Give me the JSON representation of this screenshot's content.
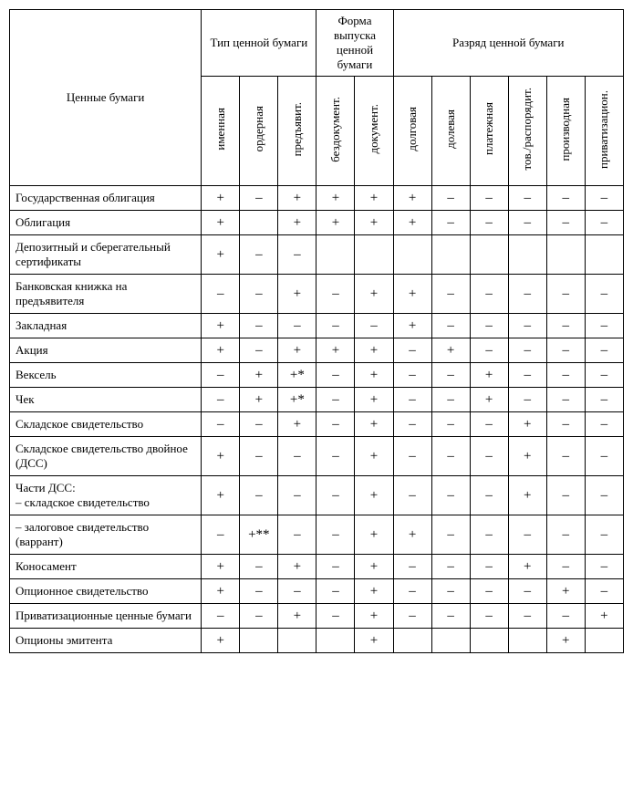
{
  "table": {
    "type": "table",
    "background_color": "#ffffff",
    "border_color": "#000000",
    "font_family": "Times New Roman",
    "body_fontsize": 13,
    "mark_fontsize": 15,
    "header": {
      "row_header": "Ценные бумаги",
      "groups": [
        {
          "label": "Тип ценной бумаги",
          "span": 3
        },
        {
          "label": "Форма выпуска ценной бумаги",
          "span": 2
        },
        {
          "label": "Разряд ценной бумаги",
          "span": 6
        }
      ],
      "subcolumns": [
        "именная",
        "ордерная",
        "предъявит.",
        "бездокумент.",
        "документ.",
        "долговая",
        "долевая",
        "платежная",
        "тов./распорядит.",
        "производная",
        "приватизацион."
      ]
    },
    "rows": [
      {
        "label": "Государственная облигация",
        "cells": [
          "+",
          "–",
          "+",
          "+",
          "+",
          "+",
          "–",
          "–",
          "–",
          "–",
          "–"
        ]
      },
      {
        "label": "Облигация",
        "cells": [
          "+",
          "",
          "+",
          "+",
          "+",
          "+",
          "–",
          "–",
          "–",
          "–",
          "–"
        ]
      },
      {
        "label": "Депозитный и сберегательный сертификаты",
        "cells": [
          "+",
          "–",
          "–",
          "",
          "",
          "",
          "",
          "",
          "",
          "",
          ""
        ]
      },
      {
        "label": "Банковская книжка на предъявителя",
        "cells": [
          "–",
          "–",
          "+",
          "–",
          "+",
          "+",
          "–",
          "–",
          "–",
          "–",
          "–"
        ]
      },
      {
        "label": "Закладная",
        "cells": [
          "+",
          "–",
          "–",
          "–",
          "–",
          "+",
          "–",
          "–",
          "–",
          "–",
          "–"
        ]
      },
      {
        "label": "Акция",
        "cells": [
          "+",
          "–",
          "+",
          "+",
          "+",
          "–",
          "+",
          "–",
          "–",
          "–",
          "–"
        ]
      },
      {
        "label": "Вексель",
        "cells": [
          "–",
          "+",
          "+*",
          "–",
          "+",
          "–",
          "–",
          "+",
          "–",
          "–",
          "–"
        ]
      },
      {
        "label": "Чек",
        "cells": [
          "–",
          "+",
          "+*",
          "–",
          "+",
          "–",
          "–",
          "+",
          "–",
          "–",
          "–"
        ]
      },
      {
        "label": "Складское свидетельство",
        "cells": [
          "–",
          "–",
          "+",
          "–",
          "+",
          "–",
          "–",
          "–",
          "+",
          "–",
          "–"
        ]
      },
      {
        "label": "Складское свидетельство двойное (ДСС)",
        "cells": [
          "+",
          "–",
          "–",
          "–",
          "+",
          "–",
          "–",
          "–",
          "+",
          "–",
          "–"
        ]
      },
      {
        "label": "Части ДСС:\n– складское свидетельство",
        "cells": [
          "+",
          "–",
          "–",
          "–",
          "+",
          "–",
          "–",
          "–",
          "+",
          "–",
          "–"
        ]
      },
      {
        "label": "– залоговое свидетельство (варрант)",
        "cells": [
          "–",
          "+**",
          "–",
          "–",
          "+",
          "+",
          "–",
          "–",
          "–",
          "–",
          "–"
        ]
      },
      {
        "label": "Коносамент",
        "cells": [
          "+",
          "–",
          "+",
          "–",
          "+",
          "–",
          "–",
          "–",
          "+",
          "–",
          "–"
        ]
      },
      {
        "label": "Опционное свидетельство",
        "cells": [
          "+",
          "–",
          "–",
          "–",
          "+",
          "–",
          "–",
          "–",
          "–",
          "+",
          "–"
        ]
      },
      {
        "label": "Приватизационные ценные бумаги",
        "cells": [
          "–",
          "–",
          "+",
          "–",
          "+",
          "–",
          "–",
          "–",
          "–",
          "–",
          "+"
        ]
      },
      {
        "label": "Опционы эмитента",
        "cells": [
          "+",
          "",
          "",
          "",
          "+",
          "",
          "",
          "",
          "",
          "+",
          ""
        ]
      }
    ]
  }
}
